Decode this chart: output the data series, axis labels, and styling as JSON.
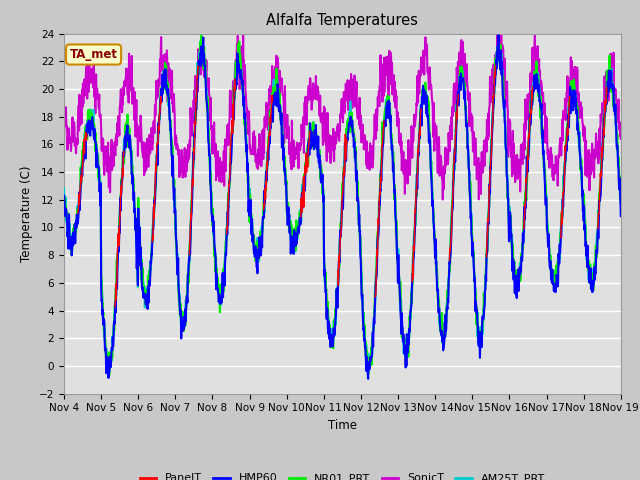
{
  "title": "Alfalfa Temperatures",
  "ylabel": "Temperature (C)",
  "xlabel": "Time",
  "annotation": "TA_met",
  "ylim": [
    -2,
    24
  ],
  "yticks": [
    -2,
    0,
    2,
    4,
    6,
    8,
    10,
    12,
    14,
    16,
    18,
    20,
    22,
    24
  ],
  "xtick_labels": [
    "Nov 4",
    "Nov 5",
    "Nov 6",
    "Nov 7",
    "Nov 8",
    "Nov 9",
    "Nov 10",
    "Nov 11",
    "Nov 12",
    "Nov 13",
    "Nov 14",
    "Nov 15",
    "Nov 16",
    "Nov 17",
    "Nov 18",
    "Nov 19"
  ],
  "series_colors": {
    "PanelT": "#ff0000",
    "HMP60": "#0000ff",
    "NR01_PRT": "#00ee00",
    "SonicT": "#cc00cc",
    "AM25T_PRT": "#00cccc"
  },
  "series_lw": {
    "PanelT": 1.0,
    "HMP60": 1.5,
    "NR01_PRT": 1.5,
    "SonicT": 1.5,
    "AM25T_PRT": 1.5
  },
  "fig_bg": "#c8c8c8",
  "plot_bg": "#e0e0e0",
  "grid_color": "#ffffff",
  "legend_entries": [
    "PanelT",
    "HMP60",
    "NR01_PRT",
    "SonicT",
    "AM25T_PRT"
  ]
}
